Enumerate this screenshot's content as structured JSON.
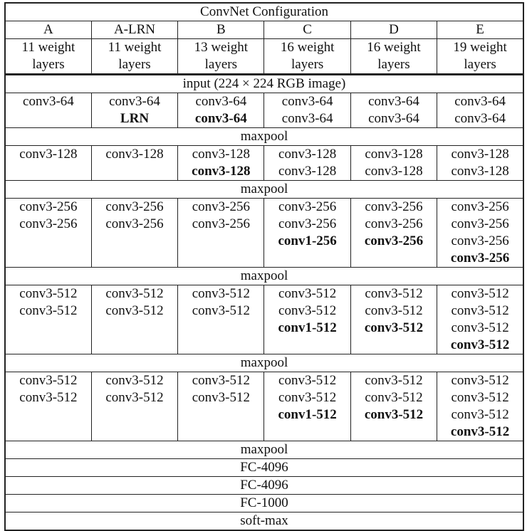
{
  "title": "ConvNet Configuration",
  "configs": [
    {
      "name": "A",
      "depth": "11 weight",
      "depth2": "layers"
    },
    {
      "name": "A-LRN",
      "depth": "11 weight",
      "depth2": "layers"
    },
    {
      "name": "B",
      "depth": "13 weight",
      "depth2": "layers"
    },
    {
      "name": "C",
      "depth": "16 weight",
      "depth2": "layers"
    },
    {
      "name": "D",
      "depth": "16 weight",
      "depth2": "layers"
    },
    {
      "name": "E",
      "depth": "19 weight",
      "depth2": "layers"
    }
  ],
  "rows": [
    {
      "span": "input (224 × 224 RGB image)"
    },
    {
      "cells": [
        [
          [
            "conv3-64",
            0
          ]
        ],
        [
          [
            "conv3-64",
            0
          ],
          [
            "LRN",
            1
          ]
        ],
        [
          [
            "conv3-64",
            0
          ],
          [
            "conv3-64",
            1
          ]
        ],
        [
          [
            "conv3-64",
            0
          ],
          [
            "conv3-64",
            0
          ]
        ],
        [
          [
            "conv3-64",
            0
          ],
          [
            "conv3-64",
            0
          ]
        ],
        [
          [
            "conv3-64",
            0
          ],
          [
            "conv3-64",
            0
          ]
        ]
      ]
    },
    {
      "span": "maxpool"
    },
    {
      "cells": [
        [
          [
            "conv3-128",
            0
          ]
        ],
        [
          [
            "conv3-128",
            0
          ]
        ],
        [
          [
            "conv3-128",
            0
          ],
          [
            "conv3-128",
            1
          ]
        ],
        [
          [
            "conv3-128",
            0
          ],
          [
            "conv3-128",
            0
          ]
        ],
        [
          [
            "conv3-128",
            0
          ],
          [
            "conv3-128",
            0
          ]
        ],
        [
          [
            "conv3-128",
            0
          ],
          [
            "conv3-128",
            0
          ]
        ]
      ]
    },
    {
      "span": "maxpool"
    },
    {
      "cells": [
        [
          [
            "conv3-256",
            0
          ],
          [
            "conv3-256",
            0
          ]
        ],
        [
          [
            "conv3-256",
            0
          ],
          [
            "conv3-256",
            0
          ]
        ],
        [
          [
            "conv3-256",
            0
          ],
          [
            "conv3-256",
            0
          ]
        ],
        [
          [
            "conv3-256",
            0
          ],
          [
            "conv3-256",
            0
          ],
          [
            "conv1-256",
            1
          ]
        ],
        [
          [
            "conv3-256",
            0
          ],
          [
            "conv3-256",
            0
          ],
          [
            "conv3-256",
            1
          ]
        ],
        [
          [
            "conv3-256",
            0
          ],
          [
            "conv3-256",
            0
          ],
          [
            "conv3-256",
            0
          ],
          [
            "conv3-256",
            1
          ]
        ]
      ]
    },
    {
      "span": "maxpool"
    },
    {
      "cells": [
        [
          [
            "conv3-512",
            0
          ],
          [
            "conv3-512",
            0
          ]
        ],
        [
          [
            "conv3-512",
            0
          ],
          [
            "conv3-512",
            0
          ]
        ],
        [
          [
            "conv3-512",
            0
          ],
          [
            "conv3-512",
            0
          ]
        ],
        [
          [
            "conv3-512",
            0
          ],
          [
            "conv3-512",
            0
          ],
          [
            "conv1-512",
            1
          ]
        ],
        [
          [
            "conv3-512",
            0
          ],
          [
            "conv3-512",
            0
          ],
          [
            "conv3-512",
            1
          ]
        ],
        [
          [
            "conv3-512",
            0
          ],
          [
            "conv3-512",
            0
          ],
          [
            "conv3-512",
            0
          ],
          [
            "conv3-512",
            1
          ]
        ]
      ]
    },
    {
      "span": "maxpool"
    },
    {
      "cells": [
        [
          [
            "conv3-512",
            0
          ],
          [
            "conv3-512",
            0
          ]
        ],
        [
          [
            "conv3-512",
            0
          ],
          [
            "conv3-512",
            0
          ]
        ],
        [
          [
            "conv3-512",
            0
          ],
          [
            "conv3-512",
            0
          ]
        ],
        [
          [
            "conv3-512",
            0
          ],
          [
            "conv3-512",
            0
          ],
          [
            "conv1-512",
            1
          ]
        ],
        [
          [
            "conv3-512",
            0
          ],
          [
            "conv3-512",
            0
          ],
          [
            "conv3-512",
            1
          ]
        ],
        [
          [
            "conv3-512",
            0
          ],
          [
            "conv3-512",
            0
          ],
          [
            "conv3-512",
            0
          ],
          [
            "conv3-512",
            1
          ]
        ]
      ]
    },
    {
      "span": "maxpool"
    },
    {
      "span": "FC-4096"
    },
    {
      "span": "FC-4096"
    },
    {
      "span": "FC-1000"
    },
    {
      "span": "soft-max"
    }
  ]
}
